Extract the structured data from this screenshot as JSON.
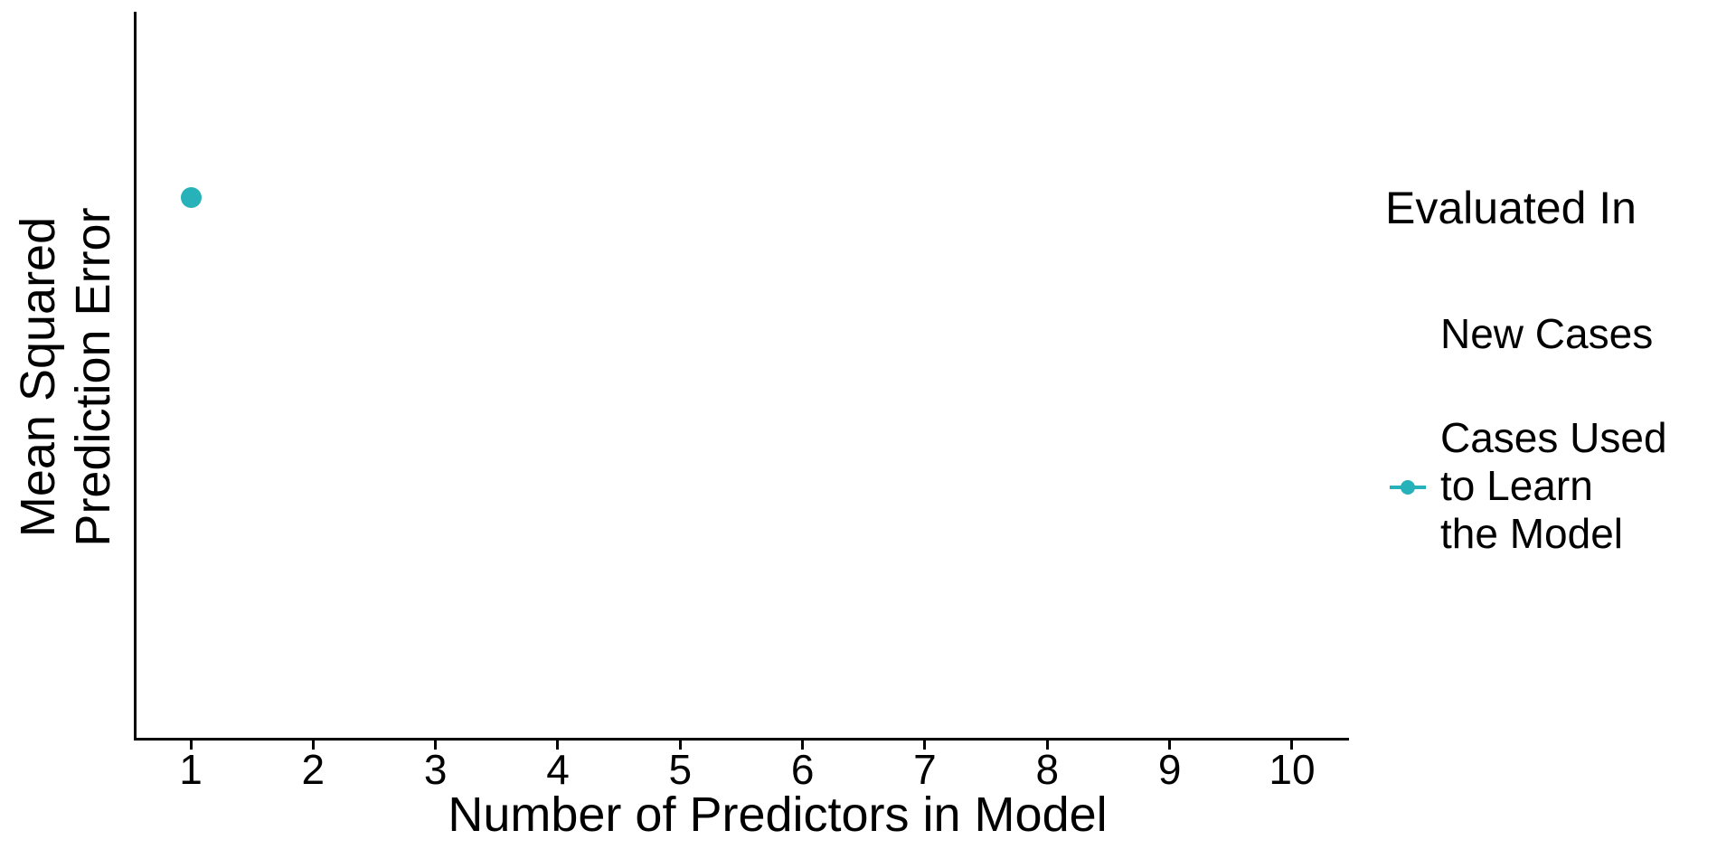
{
  "figure": {
    "background_color": "#ffffff",
    "text_color": "#000000",
    "axis_color": "#000000"
  },
  "chart_data": {
    "type": "scatter",
    "title": "",
    "xlabel": "Number of Predictors in Model",
    "ylabel": "Mean Squared Prediction Error",
    "ylabel_lines": [
      "Mean Squared",
      "Prediction Error"
    ],
    "x_ticks": [
      "1",
      "2",
      "3",
      "4",
      "5",
      "6",
      "7",
      "8",
      "9",
      "10"
    ],
    "xlim": [
      0.55,
      10.5
    ],
    "y_axis_tick_labels": "none",
    "y_axis_note": "y axis has no tick marks or numeric labels; values are relative (0 = axis bottom, 1 = axis top)",
    "grid": "off",
    "legend": {
      "title": "Evaluated In",
      "position": "right",
      "entries": [
        {
          "label": "New Cases",
          "label_lines": [
            "New Cases"
          ],
          "marker": "none",
          "color": null
        },
        {
          "label": "Cases Used to Learn the Model",
          "label_lines": [
            "Cases Used",
            "to Learn",
            "the Model"
          ],
          "marker": "point-with-line",
          "color": "#26B2B8"
        }
      ]
    },
    "series": [
      {
        "name": "New Cases",
        "color": null,
        "points": []
      },
      {
        "name": "Cases Used to Learn the Model",
        "color": "#26B2B8",
        "points": [
          {
            "x": 1,
            "y_relative": 0.745
          }
        ]
      }
    ]
  }
}
